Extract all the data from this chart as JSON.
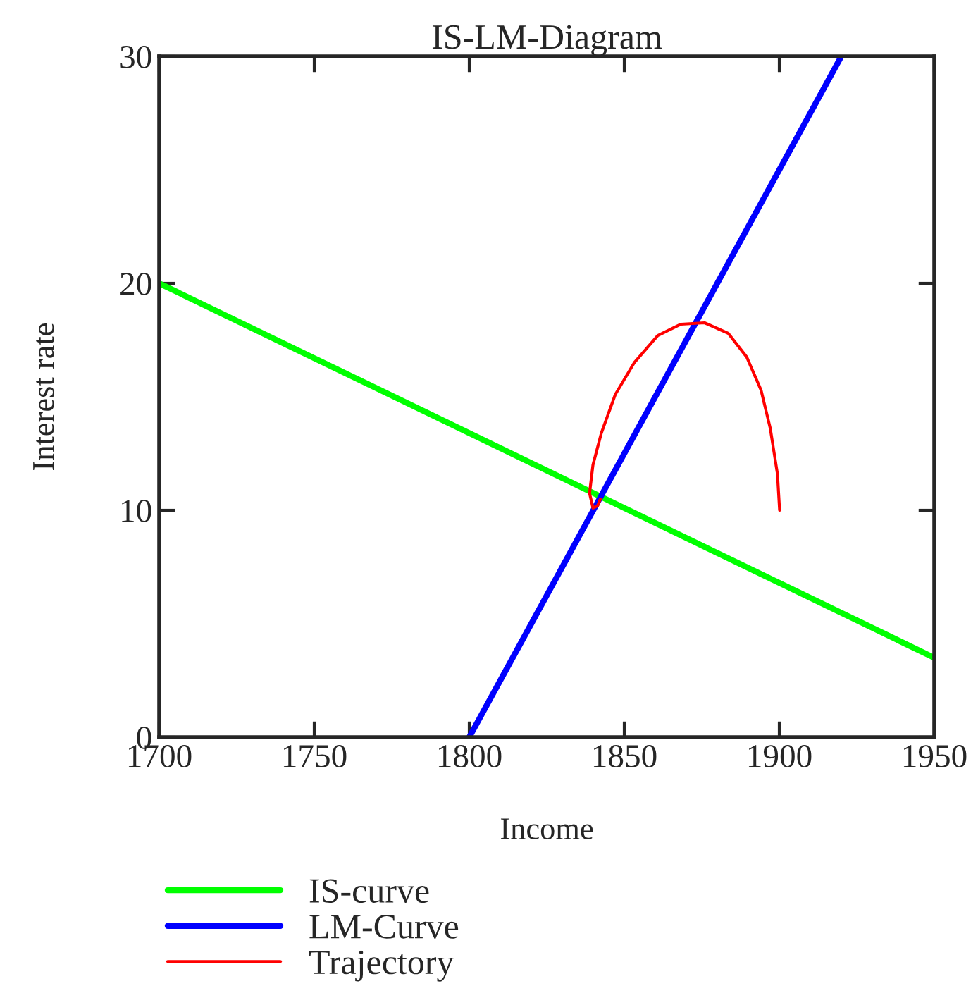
{
  "chart_data": {
    "type": "line",
    "title": "IS-LM-Diagram",
    "xlabel": "Income",
    "ylabel": "Interest rate",
    "xlim": [
      1700,
      1950
    ],
    "xticks": [
      1700,
      1750,
      1800,
      1850,
      1900,
      1950
    ],
    "ylim": [
      0,
      30
    ],
    "yticks": [
      0,
      10,
      20,
      30
    ],
    "grid": false,
    "legend": "bottom left",
    "series": [
      {
        "name": "IS-curve",
        "color": "#00ff00",
        "x": [
          1700,
          1950
        ],
        "values": [
          20,
          3.5
        ]
      },
      {
        "name": "LM-Curve",
        "color": "#0000ff",
        "x": [
          1800,
          1920
        ],
        "values": [
          0,
          30
        ]
      },
      {
        "name": "Trajectory",
        "color": "#ff0000",
        "x": [
          1900.1,
          1899.4,
          1897.1,
          1894.1,
          1889.5,
          1883.5,
          1875.9,
          1868.3,
          1860.8,
          1853.2,
          1847.1,
          1842.6,
          1839.9,
          1838.8,
          1839.9,
          1841.4,
          1842.3
        ],
        "values": [
          10.0,
          11.6,
          13.6,
          15.3,
          16.75,
          17.8,
          18.26,
          18.2,
          17.7,
          16.5,
          15.1,
          13.4,
          12.0,
          10.75,
          10.1,
          10.2,
          10.5
        ]
      }
    ]
  }
}
